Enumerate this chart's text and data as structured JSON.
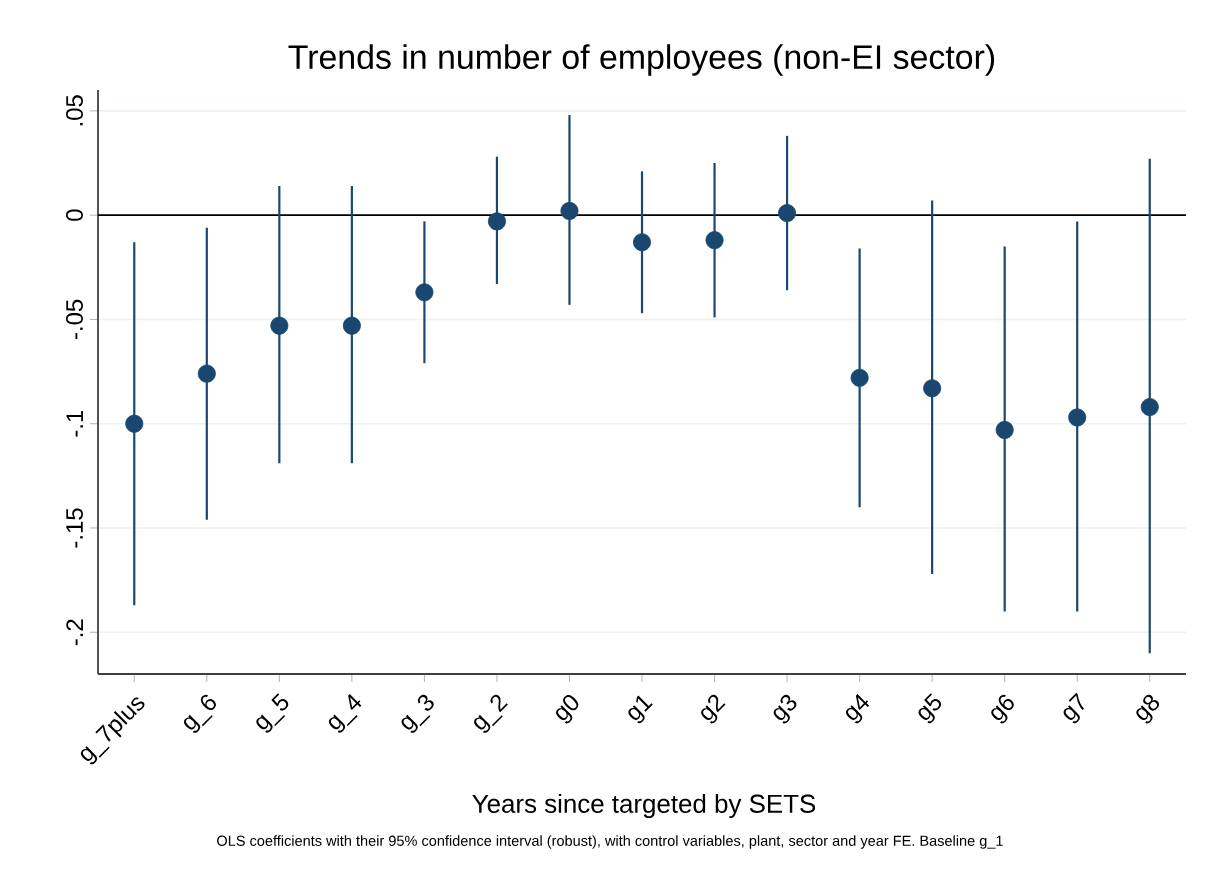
{
  "chart_data": {
    "type": "scatter",
    "title": "Trends in number of employees (non-EI sector)",
    "xlabel": "Years since targeted by SETS",
    "annotations": [
      "OLS coefficients with their 95% confidence interval (robust), with control variables, plant, sector and year FE. Baseline g_1"
    ],
    "categories": [
      "g_7plus",
      "g_6",
      "g_5",
      "g_4",
      "g_3",
      "g_2",
      "g0",
      "g1",
      "g2",
      "g3",
      "g4",
      "g5",
      "g6",
      "g7",
      "g8"
    ],
    "series": [
      {
        "color": "#1a476f",
        "values": [
          -0.1,
          -0.076,
          -0.053,
          -0.053,
          -0.037,
          -0.003,
          0.002,
          -0.013,
          -0.012,
          0.001,
          -0.078,
          -0.083,
          -0.103,
          -0.097,
          -0.092
        ],
        "errors": [
          [
            -0.187,
            -0.013
          ],
          [
            -0.146,
            -0.006
          ],
          [
            -0.119,
            0.014
          ],
          [
            -0.119,
            0.014
          ],
          [
            -0.071,
            -0.003
          ],
          [
            -0.033,
            0.028
          ],
          [
            -0.043,
            0.048
          ],
          [
            -0.047,
            0.021
          ],
          [
            -0.049,
            0.025
          ],
          [
            -0.036,
            0.038
          ],
          [
            -0.14,
            -0.016
          ],
          [
            -0.172,
            0.007
          ],
          [
            -0.19,
            -0.015
          ],
          [
            -0.19,
            -0.003
          ],
          [
            -0.21,
            0.027
          ]
        ]
      }
    ],
    "ylim": [
      -0.22,
      0.06
    ],
    "yticks": [
      {
        "value": -0.2,
        "label": "-.2"
      },
      {
        "value": -0.15,
        "label": "-.15"
      },
      {
        "value": -0.1,
        "label": "-.1"
      },
      {
        "value": -0.05,
        "label": "-.05"
      },
      0,
      {
        "value": 0.05,
        "label": ".05"
      }
    ],
    "ref_lines": [
      {
        "axis": "y",
        "value": 0,
        "color": "#000000"
      }
    ],
    "grid": "y",
    "marker": "circle"
  }
}
